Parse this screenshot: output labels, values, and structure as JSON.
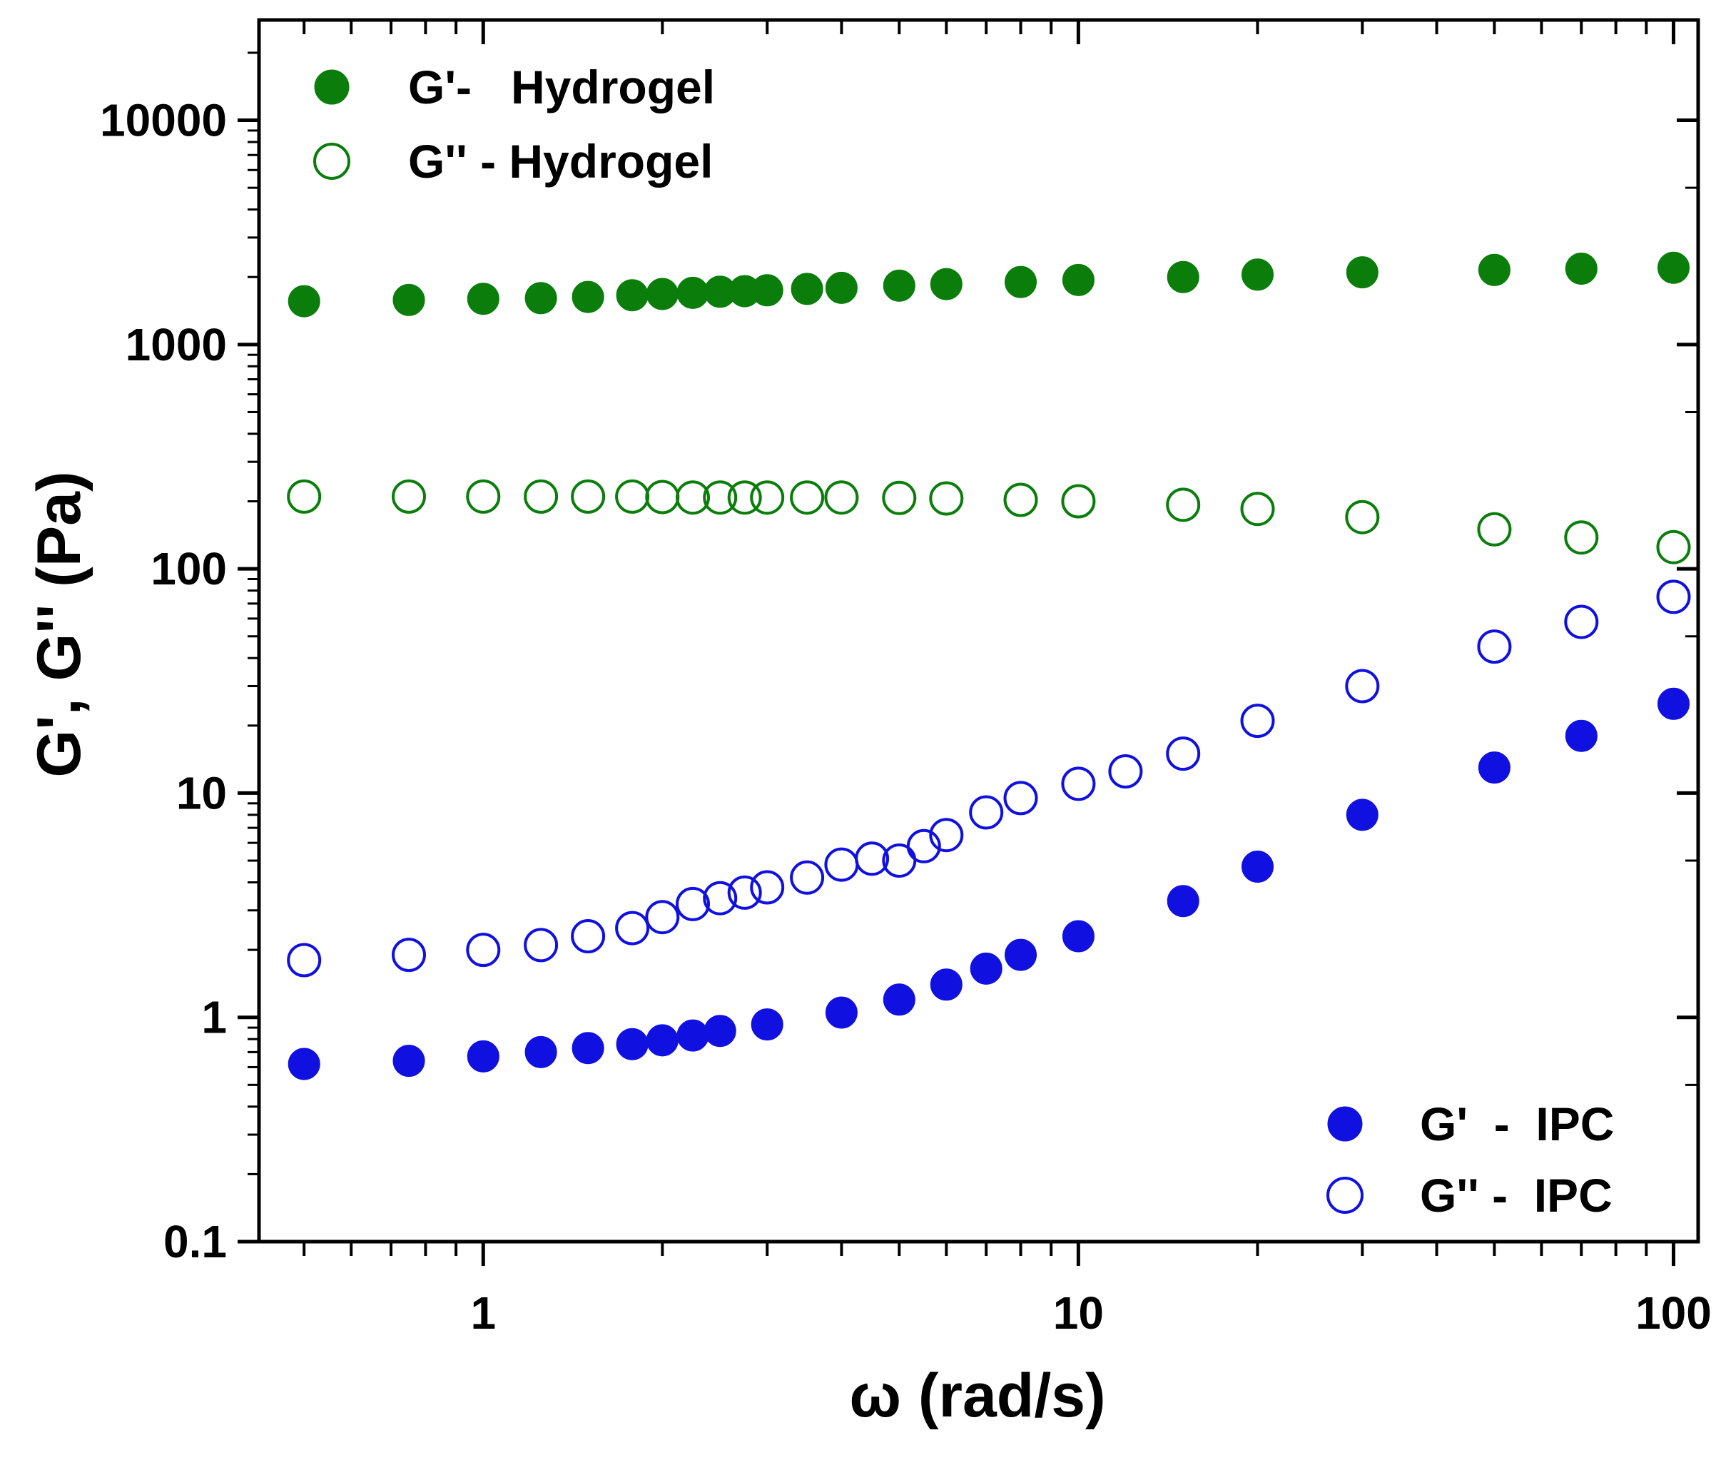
{
  "chart_data": {
    "type": "scatter",
    "x_scale": "log",
    "y_scale": "log",
    "xlabel": "ω (rad/s)",
    "ylabel": "G', G'' (Pa)",
    "xlim": [
      0.42,
      110
    ],
    "ylim": [
      0.1,
      28000
    ],
    "x_ticks": [
      {
        "value": 1,
        "label": "1"
      },
      {
        "value": 10,
        "label": "10"
      },
      {
        "value": 100,
        "label": "100"
      }
    ],
    "y_ticks": [
      {
        "value": 0.1,
        "label": "0.1"
      },
      {
        "value": 1,
        "label": "1"
      },
      {
        "value": 10,
        "label": "10"
      },
      {
        "value": 100,
        "label": "100"
      },
      {
        "value": 1000,
        "label": "1000"
      },
      {
        "value": 10000,
        "label": "10000"
      }
    ],
    "legends": [
      {
        "position": "top-left",
        "series": [
          0,
          1
        ]
      },
      {
        "position": "bottom-right",
        "series": [
          2,
          3
        ]
      }
    ],
    "series": [
      {
        "name": "G'-   Hydrogel",
        "color": "#0a7d0a",
        "marker": "filled-circle",
        "points": [
          [
            0.5,
            1560
          ],
          [
            0.75,
            1580
          ],
          [
            1,
            1600
          ],
          [
            1.25,
            1610
          ],
          [
            1.5,
            1630
          ],
          [
            1.78,
            1660
          ],
          [
            2,
            1680
          ],
          [
            2.25,
            1700
          ],
          [
            2.5,
            1720
          ],
          [
            2.75,
            1730
          ],
          [
            3,
            1745
          ],
          [
            3.5,
            1770
          ],
          [
            4,
            1790
          ],
          [
            5,
            1830
          ],
          [
            6,
            1860
          ],
          [
            8,
            1900
          ],
          [
            10,
            1940
          ],
          [
            15,
            2000
          ],
          [
            20,
            2050
          ],
          [
            30,
            2100
          ],
          [
            50,
            2150
          ],
          [
            70,
            2180
          ],
          [
            100,
            2200
          ]
        ]
      },
      {
        "name": "G'' - Hydrogel",
        "color": "#0a7d0a",
        "marker": "open-circle",
        "points": [
          [
            0.5,
            210
          ],
          [
            0.75,
            210
          ],
          [
            1,
            210
          ],
          [
            1.25,
            210
          ],
          [
            1.5,
            210
          ],
          [
            1.78,
            210
          ],
          [
            2,
            209
          ],
          [
            2.25,
            208
          ],
          [
            2.5,
            208
          ],
          [
            2.75,
            208
          ],
          [
            3,
            208
          ],
          [
            3.5,
            208
          ],
          [
            4,
            208
          ],
          [
            5,
            207
          ],
          [
            6,
            206
          ],
          [
            8,
            203
          ],
          [
            10,
            200
          ],
          [
            15,
            193
          ],
          [
            20,
            185
          ],
          [
            30,
            170
          ],
          [
            50,
            150
          ],
          [
            70,
            138
          ],
          [
            100,
            125
          ]
        ]
      },
      {
        "name": "G'  -  IPC",
        "color": "#1010e0",
        "marker": "filled-circle",
        "points": [
          [
            0.5,
            0.62
          ],
          [
            0.75,
            0.64
          ],
          [
            1,
            0.67
          ],
          [
            1.25,
            0.7
          ],
          [
            1.5,
            0.73
          ],
          [
            1.78,
            0.76
          ],
          [
            2,
            0.79
          ],
          [
            2.25,
            0.83
          ],
          [
            2.5,
            0.87
          ],
          [
            3,
            0.93
          ],
          [
            4,
            1.05
          ],
          [
            5,
            1.2
          ],
          [
            6,
            1.4
          ],
          [
            7,
            1.65
          ],
          [
            8,
            1.9
          ],
          [
            10,
            2.3
          ],
          [
            15,
            3.3
          ],
          [
            20,
            4.7
          ],
          [
            30,
            8
          ],
          [
            50,
            13
          ],
          [
            70,
            18
          ],
          [
            100,
            25
          ]
        ]
      },
      {
        "name": "G'' -  IPC",
        "color": "#1010e0",
        "marker": "open-circle",
        "points": [
          [
            0.5,
            1.8
          ],
          [
            0.75,
            1.9
          ],
          [
            1,
            2.0
          ],
          [
            1.25,
            2.1
          ],
          [
            1.5,
            2.3
          ],
          [
            1.78,
            2.5
          ],
          [
            2,
            2.8
          ],
          [
            2.25,
            3.2
          ],
          [
            2.5,
            3.4
          ],
          [
            2.75,
            3.6
          ],
          [
            3,
            3.8
          ],
          [
            3.5,
            4.2
          ],
          [
            4,
            4.8
          ],
          [
            4.5,
            5.1
          ],
          [
            5,
            5.0
          ],
          [
            5.5,
            5.8
          ],
          [
            6,
            6.5
          ],
          [
            7,
            8.2
          ],
          [
            8,
            9.5
          ],
          [
            10,
            11
          ],
          [
            12,
            12.5
          ],
          [
            15,
            15
          ],
          [
            20,
            21
          ],
          [
            30,
            30
          ],
          [
            50,
            45
          ],
          [
            70,
            58
          ],
          [
            100,
            75
          ]
        ]
      }
    ]
  }
}
